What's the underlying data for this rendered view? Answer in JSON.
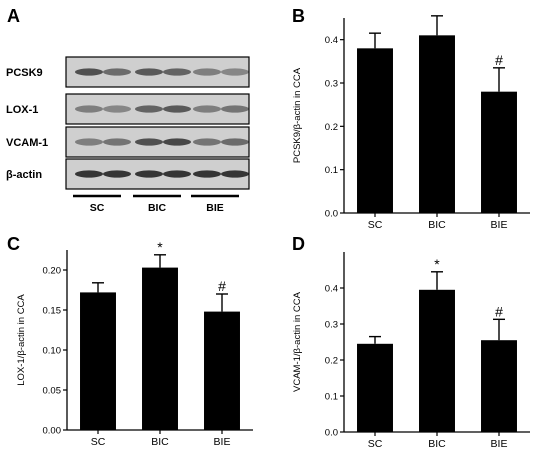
{
  "blot": {
    "letter": "A",
    "rows": [
      "PCSK9",
      "LOX-1",
      "VCAM-1",
      "β-actin"
    ],
    "groups": [
      "SC",
      "BIC",
      "BIE"
    ]
  },
  "chart_data": [
    {
      "letter": "B",
      "type": "bar",
      "categories": [
        "SC",
        "BIC",
        "BIE"
      ],
      "values": [
        0.38,
        0.41,
        0.28
      ],
      "errors": [
        0.035,
        0.045,
        0.055
      ],
      "annotations": [
        "",
        "",
        "#"
      ],
      "ylabel": "PCSK9/β-actin in CCA",
      "ylim": [
        0,
        0.45
      ],
      "yticks": [
        0.0,
        0.1,
        0.2,
        0.3,
        0.4
      ],
      "ytick_labels": [
        "0.0",
        "0.1",
        "0.2",
        "0.3",
        "0.4"
      ]
    },
    {
      "letter": "C",
      "type": "bar",
      "categories": [
        "SC",
        "BIC",
        "BIE"
      ],
      "values": [
        0.172,
        0.203,
        0.148
      ],
      "errors": [
        0.012,
        0.016,
        0.022
      ],
      "annotations": [
        "",
        "*",
        "#"
      ],
      "ylabel": "LOX-1/β-actin in CCA",
      "ylim": [
        0,
        0.225
      ],
      "yticks": [
        0.0,
        0.05,
        0.1,
        0.15,
        0.2
      ],
      "ytick_labels": [
        "0.00",
        "0.05",
        "0.10",
        "0.15",
        "0.20"
      ]
    },
    {
      "letter": "D",
      "type": "bar",
      "categories": [
        "SC",
        "BIC",
        "BIE"
      ],
      "values": [
        0.245,
        0.395,
        0.255
      ],
      "errors": [
        0.02,
        0.05,
        0.058
      ],
      "annotations": [
        "",
        "*",
        "#"
      ],
      "ylabel": "VCAM-1/β-actin in CCA",
      "ylim": [
        0,
        0.5
      ],
      "yticks": [
        0.0,
        0.1,
        0.2,
        0.3,
        0.4
      ],
      "ytick_labels": [
        "0.0",
        "0.1",
        "0.2",
        "0.3",
        "0.4"
      ]
    }
  ]
}
